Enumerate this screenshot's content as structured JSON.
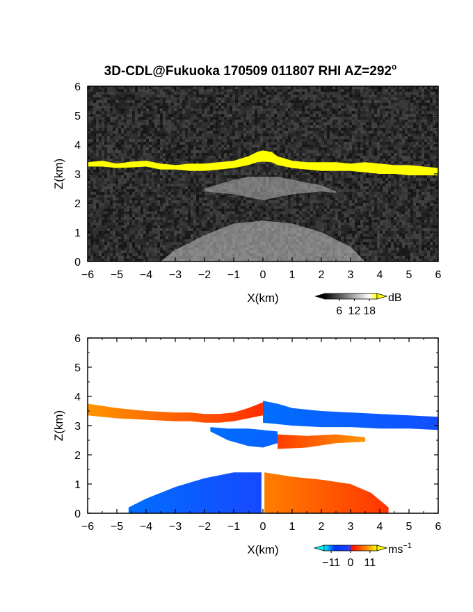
{
  "title": "3D-CDL@Fukuoka 170509 011807 RHI AZ=292",
  "title_degree": "o",
  "chart_data": [
    {
      "type": "heatmap",
      "panel": "backscatter",
      "xlabel": "X(km)",
      "ylabel": "Z(km)",
      "xlim": [
        -6,
        6
      ],
      "ylim": [
        0,
        6
      ],
      "xticks": [
        "−6",
        "−5",
        "−4",
        "−3",
        "−2",
        "−1",
        "0",
        "1",
        "2",
        "3",
        "4",
        "5",
        "6"
      ],
      "yticks": [
        "0",
        "1",
        "2",
        "3",
        "4",
        "5",
        "6"
      ],
      "background_color": "#2a2a2a",
      "colorbar": {
        "unit": "dB",
        "ticks": [
          "6",
          "12",
          "18"
        ],
        "tick_values": [
          6,
          12,
          18
        ],
        "range": [
          0,
          21
        ],
        "colors": [
          "#000000",
          "#ffffff",
          "#ffff00"
        ]
      },
      "layers": [
        {
          "name": "cloud-base",
          "color": "#ffff00",
          "x": [
            -6,
            -5.5,
            -5,
            -4.5,
            -4,
            -3.5,
            -3,
            -2.5,
            -2,
            -1.5,
            -1,
            -0.5,
            -0.2,
            0,
            0.3,
            0.5,
            1,
            1.5,
            2,
            2.5,
            3,
            3.5,
            4,
            4.5,
            5,
            5.5,
            6
          ],
          "top": [
            3.4,
            3.45,
            3.35,
            3.42,
            3.45,
            3.35,
            3.3,
            3.35,
            3.35,
            3.4,
            3.45,
            3.6,
            3.75,
            3.8,
            3.75,
            3.6,
            3.45,
            3.4,
            3.4,
            3.4,
            3.35,
            3.4,
            3.35,
            3.3,
            3.3,
            3.25,
            3.2
          ],
          "bottom": [
            3.25,
            3.25,
            3.2,
            3.22,
            3.25,
            3.15,
            3.15,
            3.1,
            3.1,
            3.15,
            3.2,
            3.3,
            3.4,
            3.42,
            3.4,
            3.3,
            3.2,
            3.15,
            3.1,
            3.1,
            3.1,
            3.05,
            3.0,
            3.0,
            2.95,
            2.95,
            2.95
          ]
        },
        {
          "name": "mid-aerosol",
          "color": "#b8b8b8",
          "x": [
            -2,
            -1,
            -0.5,
            0,
            0.5,
            1,
            2,
            2.5
          ],
          "top": [
            2.5,
            2.8,
            2.9,
            2.9,
            2.9,
            2.8,
            2.6,
            2.4
          ],
          "bottom": [
            2.4,
            2.3,
            2.2,
            2.1,
            2.2,
            2.3,
            2.4,
            2.35
          ]
        },
        {
          "name": "boundary-layer",
          "color": "#c8c8c8",
          "x": [
            -3.5,
            -3,
            -2,
            -1,
            0,
            1,
            2,
            3,
            3.5
          ],
          "top": [
            0,
            0.4,
            0.9,
            1.3,
            1.4,
            1.3,
            1.0,
            0.5,
            0
          ],
          "bottom": [
            0,
            0,
            0,
            0,
            0,
            0,
            0,
            0,
            0
          ]
        }
      ]
    },
    {
      "type": "heatmap",
      "panel": "doppler-velocity",
      "xlabel": "X(km)",
      "ylabel": "Z(km)",
      "xlim": [
        -6,
        6
      ],
      "ylim": [
        0,
        6
      ],
      "xticks": [
        "−6",
        "−5",
        "−4",
        "−3",
        "−2",
        "−1",
        "0",
        "1",
        "2",
        "3",
        "4",
        "5",
        "6"
      ],
      "yticks": [
        "0",
        "1",
        "2",
        "3",
        "4",
        "5",
        "6"
      ],
      "background_color": "#ffffff",
      "colorbar": {
        "unit": "ms",
        "unit_exponent": "−1",
        "ticks": [
          "−11",
          "0",
          "11"
        ],
        "tick_values": [
          -11,
          0,
          11
        ],
        "range": [
          -15,
          15
        ],
        "colors": [
          "#00ffff",
          "#0033ff",
          "#ff0000",
          "#ffff00"
        ]
      },
      "layers": [
        {
          "name": "cloud-base-west",
          "velocity": [
            10,
            4
          ],
          "x": [
            -6,
            -5,
            -4,
            -3,
            -2.5,
            -2,
            -1.5,
            -1,
            -0.5,
            0
          ],
          "top": [
            3.75,
            3.6,
            3.5,
            3.45,
            3.45,
            3.4,
            3.4,
            3.45,
            3.6,
            3.8
          ],
          "bottom": [
            3.35,
            3.25,
            3.2,
            3.15,
            3.15,
            3.1,
            3.1,
            3.15,
            3.25,
            3.35
          ]
        },
        {
          "name": "cloud-base-east",
          "velocity": [
            -11,
            -6
          ],
          "x": [
            0,
            0.5,
            1,
            2,
            3,
            4,
            5,
            6
          ],
          "top": [
            3.85,
            3.75,
            3.6,
            3.5,
            3.45,
            3.4,
            3.35,
            3.3
          ],
          "bottom": [
            3.1,
            3.05,
            3.0,
            2.95,
            2.95,
            2.9,
            2.9,
            2.85
          ]
        },
        {
          "name": "mid-layer-approaching",
          "velocity": [
            -11,
            -9
          ],
          "x": [
            -1.8,
            -1.2,
            -0.5,
            0,
            0.5
          ],
          "top": [
            2.95,
            2.9,
            2.9,
            2.85,
            2.8
          ],
          "bottom": [
            2.8,
            2.5,
            2.3,
            2.25,
            2.4
          ]
        },
        {
          "name": "mid-layer-receding",
          "velocity": [
            6,
            10
          ],
          "x": [
            0.5,
            1.5,
            2.5,
            3.5
          ],
          "top": [
            2.7,
            2.65,
            2.7,
            2.6
          ],
          "bottom": [
            2.2,
            2.25,
            2.4,
            2.45
          ]
        },
        {
          "name": "boundary-layer-west",
          "velocity": [
            -11,
            -5
          ],
          "x": [
            -4.6,
            -4,
            -3,
            -2,
            -1,
            -0.05
          ],
          "top": [
            0.2,
            0.5,
            0.9,
            1.2,
            1.4,
            1.4
          ],
          "bottom": [
            0,
            0,
            0,
            0,
            0,
            0
          ]
        },
        {
          "name": "boundary-layer-east",
          "velocity": [
            9,
            5
          ],
          "x": [
            0.05,
            1,
            2,
            3,
            3.7,
            4.3
          ],
          "top": [
            1.4,
            1.25,
            1.15,
            1.0,
            0.7,
            0.2
          ],
          "bottom": [
            0,
            0,
            0,
            0,
            0,
            0
          ]
        }
      ]
    }
  ]
}
